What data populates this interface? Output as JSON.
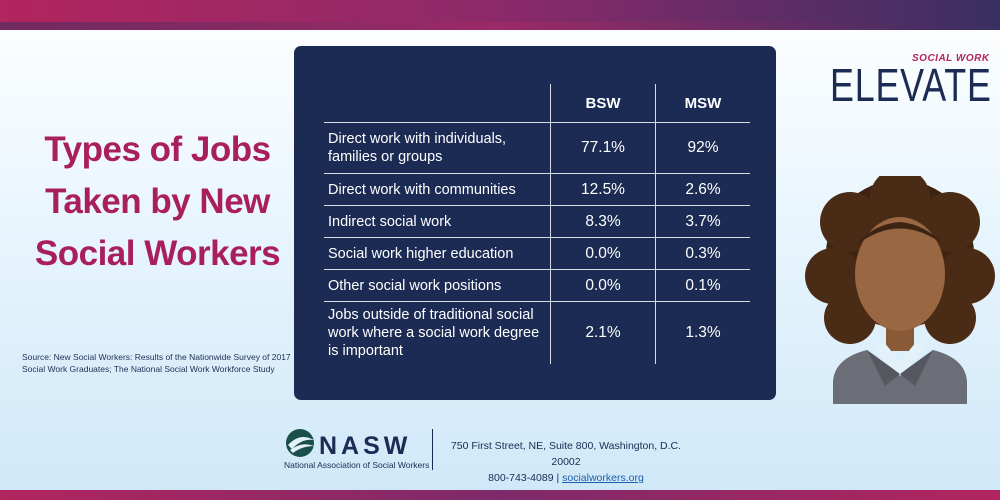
{
  "title": "Types of Jobs Taken by New Social Workers",
  "source": "Source: New Social Workers: Results of the Nationwide Survey of 2017 Social Work Graduates; The National Social Work Workforce Study",
  "table": {
    "headers": [
      "",
      "BSW",
      "MSW"
    ],
    "rows": [
      {
        "label": "Direct work with individuals, families or groups",
        "bsw": "77.1%",
        "msw": "92%"
      },
      {
        "label": "Direct work with communities",
        "bsw": "12.5%",
        "msw": "2.6%"
      },
      {
        "label": "Indirect social work",
        "bsw": "8.3%",
        "msw": "3.7%"
      },
      {
        "label": "Social work higher education",
        "bsw": "0.0%",
        "msw": "0.3%"
      },
      {
        "label": "Other social work positions",
        "bsw": "0.0%",
        "msw": "0.1%"
      },
      {
        "label": "Jobs outside of traditional social work where a social work degree is important",
        "bsw": "2.1%",
        "msw": "1.3%"
      }
    ]
  },
  "brand": {
    "small": "SOCIAL WORK",
    "big": "ELEVATE"
  },
  "footer": {
    "org_short": "NASW",
    "org_full": "National Association of Social Workers",
    "address": "750 First Street, NE, Suite 800, Washington, D.C. 20002",
    "phone": "800-743-4089",
    "separator": "|",
    "website": "socialworkers.org"
  },
  "colors": {
    "title": "#a81f5c",
    "panel": "#1b2b54",
    "accent": "#b2255f"
  }
}
